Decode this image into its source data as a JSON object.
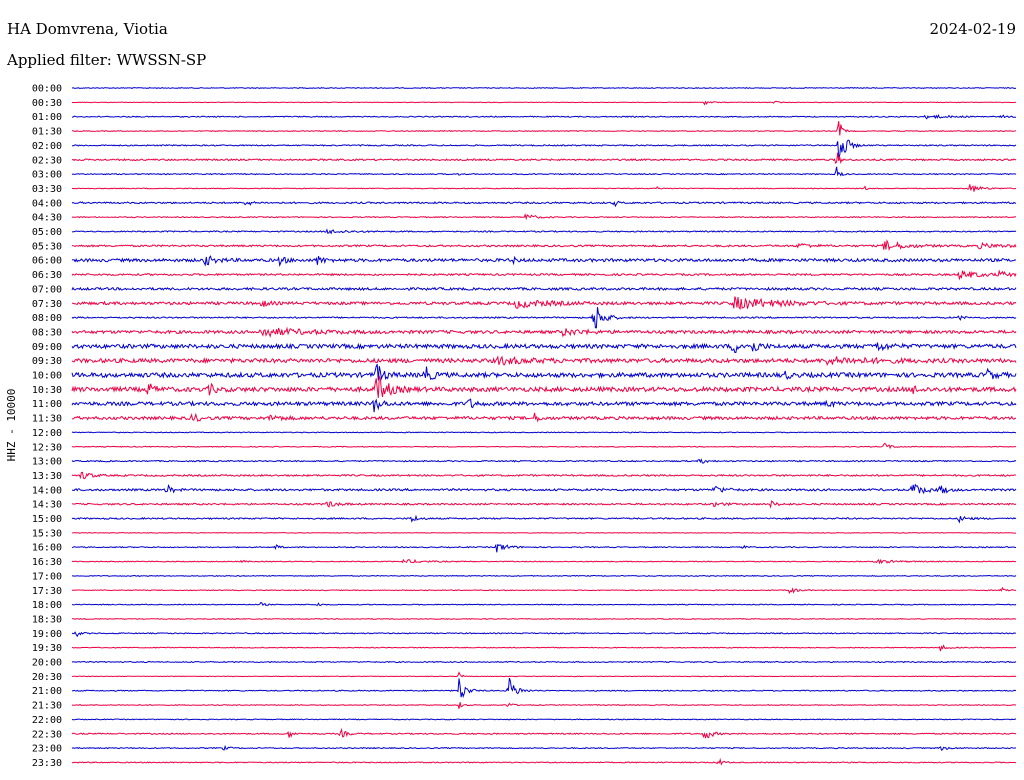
{
  "header": {
    "station": "HA Domvrena, Viotia",
    "date": "2024-02-19",
    "filter": "Applied filter: WWSSN-SP"
  },
  "chart_data": {
    "type": "line",
    "title": "HA Domvrena, Viotia",
    "subtitle": "Applied filter: WWSSN-SP",
    "ylabel": "HHZ - 10000",
    "colors": [
      "#0000cc",
      "#ee0044"
    ],
    "x_minutes_per_row": 30,
    "rows": [
      {
        "label": "00:00",
        "noise": 0.4,
        "events": []
      },
      {
        "label": "00:30",
        "noise": 0.3,
        "events": [
          {
            "t": 0.67,
            "a": 2,
            "w": 0.006
          },
          {
            "t": 0.745,
            "a": 1.5,
            "w": 0.003
          }
        ]
      },
      {
        "label": "01:00",
        "noise": 0.5,
        "events": [
          {
            "t": 0.905,
            "a": 2,
            "w": 0.02
          },
          {
            "t": 0.985,
            "a": 1.5,
            "w": 0.004
          }
        ]
      },
      {
        "label": "01:30",
        "noise": 0.4,
        "events": [
          {
            "t": 0.812,
            "a": 14,
            "w": 0.003
          }
        ]
      },
      {
        "label": "02:00",
        "noise": 0.6,
        "events": [
          {
            "t": 0.812,
            "a": 28,
            "w": 0.006
          }
        ]
      },
      {
        "label": "02:30",
        "noise": 0.8,
        "events": [
          {
            "t": 0.81,
            "a": 10,
            "w": 0.003
          }
        ]
      },
      {
        "label": "03:00",
        "noise": 0.5,
        "events": [
          {
            "t": 0.41,
            "a": 2,
            "w": 0.002
          },
          {
            "t": 0.81,
            "a": 8,
            "w": 0.003
          }
        ]
      },
      {
        "label": "03:30",
        "noise": 0.4,
        "events": [
          {
            "t": 0.62,
            "a": 1.5,
            "w": 0.002
          },
          {
            "t": 0.84,
            "a": 2,
            "w": 0.002
          },
          {
            "t": 0.95,
            "a": 5,
            "w": 0.01
          }
        ]
      },
      {
        "label": "04:00",
        "noise": 0.8,
        "events": [
          {
            "t": 0.185,
            "a": 5,
            "w": 0.003
          },
          {
            "t": 0.575,
            "a": 3,
            "w": 0.003
          }
        ]
      },
      {
        "label": "04:30",
        "noise": 0.5,
        "events": [
          {
            "t": 0.48,
            "a": 3,
            "w": 0.01
          }
        ]
      },
      {
        "label": "05:00",
        "noise": 0.6,
        "events": [
          {
            "t": 0.27,
            "a": 2,
            "w": 0.02
          }
        ]
      },
      {
        "label": "05:30",
        "noise": 0.9,
        "events": [
          {
            "t": 0.77,
            "a": 3,
            "w": 0.01
          },
          {
            "t": 0.86,
            "a": 5,
            "w": 0.02
          },
          {
            "t": 0.96,
            "a": 2,
            "w": 0.03
          }
        ]
      },
      {
        "label": "06:00",
        "noise": 1.5,
        "events": [
          {
            "t": 0.14,
            "a": 5,
            "w": 0.01
          },
          {
            "t": 0.22,
            "a": 4,
            "w": 0.006
          },
          {
            "t": 0.26,
            "a": 4,
            "w": 0.006
          },
          {
            "t": 0.465,
            "a": 4,
            "w": 0.004
          }
        ]
      },
      {
        "label": "06:30",
        "noise": 0.9,
        "events": [
          {
            "t": 0.94,
            "a": 4,
            "w": 0.02
          },
          {
            "t": 0.98,
            "a": 3,
            "w": 0.01
          }
        ]
      },
      {
        "label": "07:00",
        "noise": 1.2,
        "events": []
      },
      {
        "label": "07:30",
        "noise": 1.4,
        "events": [
          {
            "t": 0.2,
            "a": 4,
            "w": 0.006
          },
          {
            "t": 0.47,
            "a": 4,
            "w": 0.03
          },
          {
            "t": 0.7,
            "a": 6,
            "w": 0.04
          }
        ]
      },
      {
        "label": "08:00",
        "noise": 0.7,
        "events": [
          {
            "t": 0.553,
            "a": 18,
            "w": 0.008
          },
          {
            "t": 0.94,
            "a": 3,
            "w": 0.003
          }
        ]
      },
      {
        "label": "08:30",
        "noise": 1.5,
        "events": [
          {
            "t": 0.2,
            "a": 4,
            "w": 0.04
          },
          {
            "t": 0.52,
            "a": 3,
            "w": 0.02
          }
        ]
      },
      {
        "label": "09:00",
        "noise": 2.0,
        "events": [
          {
            "t": 0.7,
            "a": 8,
            "w": 0.006
          },
          {
            "t": 0.72,
            "a": 7,
            "w": 0.006
          },
          {
            "t": 0.85,
            "a": 5,
            "w": 0.01
          }
        ]
      },
      {
        "label": "09:30",
        "noise": 2.0,
        "events": [
          {
            "t": 0.45,
            "a": 3,
            "w": 0.03
          },
          {
            "t": 0.8,
            "a": 3,
            "w": 0.04
          }
        ]
      },
      {
        "label": "10:00",
        "noise": 2.2,
        "events": [
          {
            "t": 0.322,
            "a": 12,
            "w": 0.006
          },
          {
            "t": 0.373,
            "a": 10,
            "w": 0.006
          },
          {
            "t": 0.755,
            "a": 4,
            "w": 0.004
          },
          {
            "t": 0.97,
            "a": 5,
            "w": 0.006
          }
        ]
      },
      {
        "label": "10:30",
        "noise": 2.2,
        "events": [
          {
            "t": 0.08,
            "a": 6,
            "w": 0.006
          },
          {
            "t": 0.145,
            "a": 5,
            "w": 0.006
          },
          {
            "t": 0.322,
            "a": 16,
            "w": 0.01
          },
          {
            "t": 0.89,
            "a": 4,
            "w": 0.006
          }
        ]
      },
      {
        "label": "11:00",
        "noise": 1.8,
        "events": [
          {
            "t": 0.32,
            "a": 8,
            "w": 0.006
          },
          {
            "t": 0.42,
            "a": 5,
            "w": 0.006
          },
          {
            "t": 0.8,
            "a": 4,
            "w": 0.004
          }
        ]
      },
      {
        "label": "11:30",
        "noise": 1.5,
        "events": [
          {
            "t": 0.128,
            "a": 6,
            "w": 0.005
          },
          {
            "t": 0.21,
            "a": 3,
            "w": 0.01
          },
          {
            "t": 0.49,
            "a": 4,
            "w": 0.005
          }
        ]
      },
      {
        "label": "12:00",
        "noise": 0.4,
        "events": []
      },
      {
        "label": "12:30",
        "noise": 0.4,
        "events": [
          {
            "t": 0.86,
            "a": 4,
            "w": 0.006
          }
        ]
      },
      {
        "label": "13:00",
        "noise": 0.6,
        "events": [
          {
            "t": 0.665,
            "a": 3,
            "w": 0.006
          }
        ]
      },
      {
        "label": "13:30",
        "noise": 0.8,
        "events": [
          {
            "t": 0.01,
            "a": 5,
            "w": 0.008
          }
        ]
      },
      {
        "label": "14:00",
        "noise": 1.0,
        "events": [
          {
            "t": 0.1,
            "a": 5,
            "w": 0.006
          },
          {
            "t": 0.68,
            "a": 4,
            "w": 0.01
          },
          {
            "t": 0.89,
            "a": 8,
            "w": 0.01
          },
          {
            "t": 0.92,
            "a": 5,
            "w": 0.006
          }
        ]
      },
      {
        "label": "14:30",
        "noise": 0.8,
        "events": [
          {
            "t": 0.27,
            "a": 3,
            "w": 0.01
          },
          {
            "t": 0.68,
            "a": 2,
            "w": 0.01
          },
          {
            "t": 0.74,
            "a": 3,
            "w": 0.006
          }
        ]
      },
      {
        "label": "15:00",
        "noise": 0.7,
        "events": [
          {
            "t": 0.36,
            "a": 4,
            "w": 0.006
          },
          {
            "t": 0.94,
            "a": 3,
            "w": 0.008
          }
        ]
      },
      {
        "label": "15:30",
        "noise": 0.3,
        "events": []
      },
      {
        "label": "16:00",
        "noise": 0.5,
        "events": [
          {
            "t": 0.215,
            "a": 3,
            "w": 0.004
          },
          {
            "t": 0.45,
            "a": 5,
            "w": 0.01
          },
          {
            "t": 0.71,
            "a": 3,
            "w": 0.003
          }
        ]
      },
      {
        "label": "16:30",
        "noise": 0.4,
        "events": [
          {
            "t": 0.18,
            "a": 2,
            "w": 0.003
          },
          {
            "t": 0.35,
            "a": 2,
            "w": 0.02
          },
          {
            "t": 0.85,
            "a": 2,
            "w": 0.02
          }
        ]
      },
      {
        "label": "17:00",
        "noise": 0.4,
        "events": []
      },
      {
        "label": "17:30",
        "noise": 0.4,
        "events": [
          {
            "t": 0.76,
            "a": 4,
            "w": 0.006
          },
          {
            "t": 0.985,
            "a": 3,
            "w": 0.006
          }
        ]
      },
      {
        "label": "18:00",
        "noise": 0.4,
        "events": [
          {
            "t": 0.2,
            "a": 2,
            "w": 0.004
          },
          {
            "t": 0.26,
            "a": 2,
            "w": 0.004
          }
        ]
      },
      {
        "label": "18:30",
        "noise": 0.4,
        "events": []
      },
      {
        "label": "19:00",
        "noise": 0.5,
        "events": [
          {
            "t": 0.005,
            "a": 3,
            "w": 0.004
          }
        ]
      },
      {
        "label": "19:30",
        "noise": 0.4,
        "events": [
          {
            "t": 0.92,
            "a": 3,
            "w": 0.006
          }
        ]
      },
      {
        "label": "20:00",
        "noise": 0.5,
        "events": []
      },
      {
        "label": "20:30",
        "noise": 0.3,
        "events": [
          {
            "t": 0.41,
            "a": 4,
            "w": 0.003
          }
        ]
      },
      {
        "label": "21:00",
        "noise": 0.5,
        "events": [
          {
            "t": 0.41,
            "a": 14,
            "w": 0.006
          },
          {
            "t": 0.463,
            "a": 13,
            "w": 0.007
          }
        ]
      },
      {
        "label": "21:30",
        "noise": 0.4,
        "events": [
          {
            "t": 0.41,
            "a": 4,
            "w": 0.003
          },
          {
            "t": 0.463,
            "a": 4,
            "w": 0.003
          }
        ]
      },
      {
        "label": "22:00",
        "noise": 0.4,
        "events": []
      },
      {
        "label": "22:30",
        "noise": 0.6,
        "events": [
          {
            "t": 0.23,
            "a": 4,
            "w": 0.004
          },
          {
            "t": 0.285,
            "a": 4,
            "w": 0.006
          },
          {
            "t": 0.67,
            "a": 8,
            "w": 0.006
          }
        ]
      },
      {
        "label": "23:00",
        "noise": 0.5,
        "events": [
          {
            "t": 0.16,
            "a": 2,
            "w": 0.006
          },
          {
            "t": 0.92,
            "a": 2,
            "w": 0.008
          }
        ]
      },
      {
        "label": "23:30",
        "noise": 0.5,
        "events": [
          {
            "t": 0.685,
            "a": 4,
            "w": 0.004
          }
        ]
      }
    ]
  }
}
